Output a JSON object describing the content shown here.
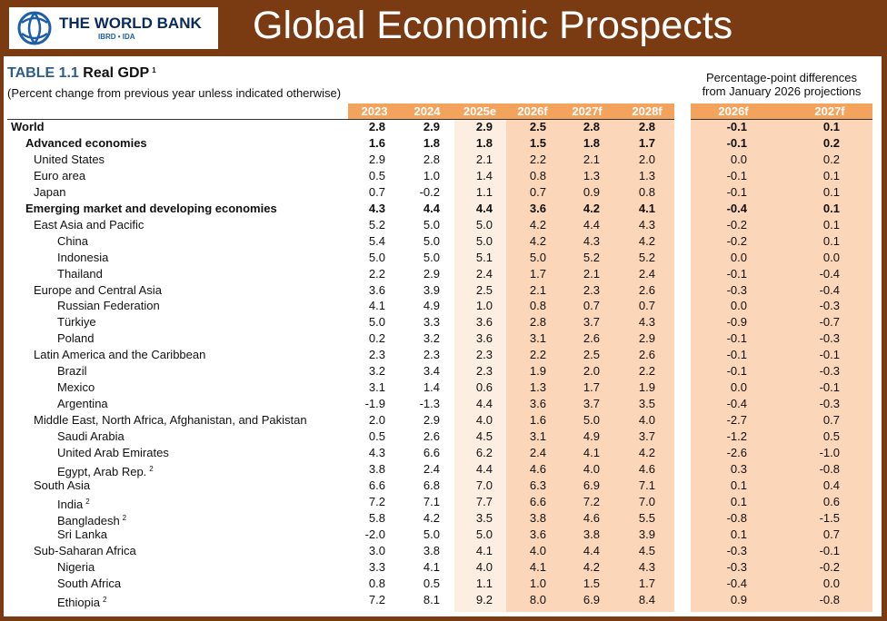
{
  "header": {
    "logo_name": "THE WORLD BANK",
    "logo_sub": "IBRD • IDA",
    "title": "Global Economic Prospects"
  },
  "table": {
    "label": "TABLE 1.1",
    "title": "Real GDP",
    "title_note": "1",
    "subtitle": "(Percent change from previous year unless indicated otherwise)",
    "diff_header": [
      "Percentage-point differences",
      "from January 2026 projections"
    ],
    "columns": [
      "2023",
      "2024",
      "2025e",
      "2026f",
      "2027f",
      "2028f"
    ],
    "diff_columns": [
      "2026f",
      "2027f"
    ],
    "rows": [
      {
        "label": "World",
        "level": 0,
        "bold": true,
        "values": [
          "2.8",
          "2.9",
          "2.9",
          "2.5",
          "2.8",
          "2.8"
        ],
        "diffs": [
          "-0.1",
          "0.1"
        ]
      },
      {
        "label": "Advanced economies",
        "level": 1,
        "bold": true,
        "values": [
          "1.6",
          "1.8",
          "1.8",
          "1.5",
          "1.8",
          "1.7"
        ],
        "diffs": [
          "-0.1",
          "0.2"
        ]
      },
      {
        "label": "United States",
        "level": 2,
        "values": [
          "2.9",
          "2.8",
          "2.1",
          "2.2",
          "2.1",
          "2.0"
        ],
        "diffs": [
          "0.0",
          "0.2"
        ]
      },
      {
        "label": "Euro area",
        "level": 2,
        "values": [
          "0.5",
          "1.0",
          "1.4",
          "0.8",
          "1.3",
          "1.3"
        ],
        "diffs": [
          "-0.1",
          "0.1"
        ]
      },
      {
        "label": "Japan",
        "level": 2,
        "values": [
          "0.7",
          "-0.2",
          "1.1",
          "0.7",
          "0.9",
          "0.8"
        ],
        "diffs": [
          "-0.1",
          "0.1"
        ]
      },
      {
        "label": "Emerging market and developing economies",
        "level": 1,
        "bold": true,
        "values": [
          "4.3",
          "4.4",
          "4.4",
          "3.6",
          "4.2",
          "4.1"
        ],
        "diffs": [
          "-0.4",
          "0.1"
        ]
      },
      {
        "label": "East Asia and Pacific",
        "level": 2,
        "values": [
          "5.2",
          "5.0",
          "5.0",
          "4.2",
          "4.4",
          "4.3"
        ],
        "diffs": [
          "-0.2",
          "0.1"
        ]
      },
      {
        "label": "China",
        "level": 3,
        "values": [
          "5.4",
          "5.0",
          "5.0",
          "4.2",
          "4.3",
          "4.2"
        ],
        "diffs": [
          "-0.2",
          "0.1"
        ]
      },
      {
        "label": "Indonesia",
        "level": 3,
        "values": [
          "5.0",
          "5.0",
          "5.1",
          "5.0",
          "5.2",
          "5.2"
        ],
        "diffs": [
          "0.0",
          "0.0"
        ]
      },
      {
        "label": "Thailand",
        "level": 3,
        "values": [
          "2.2",
          "2.9",
          "2.4",
          "1.7",
          "2.1",
          "2.4"
        ],
        "diffs": [
          "-0.1",
          "-0.4"
        ]
      },
      {
        "label": "Europe and Central Asia",
        "level": 2,
        "values": [
          "3.6",
          "3.9",
          "2.5",
          "2.1",
          "2.3",
          "2.6"
        ],
        "diffs": [
          "-0.3",
          "-0.4"
        ]
      },
      {
        "label": "Russian Federation",
        "level": 3,
        "values": [
          "4.1",
          "4.9",
          "1.0",
          "0.8",
          "0.7",
          "0.7"
        ],
        "diffs": [
          "0.0",
          "-0.3"
        ]
      },
      {
        "label": "Türkiye",
        "level": 3,
        "values": [
          "5.0",
          "3.3",
          "3.6",
          "2.8",
          "3.7",
          "4.3"
        ],
        "diffs": [
          "-0.9",
          "-0.7"
        ]
      },
      {
        "label": "Poland",
        "level": 3,
        "values": [
          "0.2",
          "3.2",
          "3.6",
          "3.1",
          "2.6",
          "2.9"
        ],
        "diffs": [
          "-0.1",
          "-0.3"
        ]
      },
      {
        "label": "Latin America and the Caribbean",
        "level": 2,
        "values": [
          "2.3",
          "2.3",
          "2.3",
          "2.2",
          "2.5",
          "2.6"
        ],
        "diffs": [
          "-0.1",
          "-0.1"
        ]
      },
      {
        "label": "Brazil",
        "level": 3,
        "values": [
          "3.2",
          "3.4",
          "2.3",
          "1.9",
          "2.0",
          "2.2"
        ],
        "diffs": [
          "-0.1",
          "-0.3"
        ]
      },
      {
        "label": "Mexico",
        "level": 3,
        "values": [
          "3.1",
          "1.4",
          "0.6",
          "1.3",
          "1.7",
          "1.9"
        ],
        "diffs": [
          "0.0",
          "-0.1"
        ]
      },
      {
        "label": "Argentina",
        "level": 3,
        "values": [
          "-1.9",
          "-1.3",
          "4.4",
          "3.6",
          "3.7",
          "3.5"
        ],
        "diffs": [
          "-0.4",
          "-0.3"
        ]
      },
      {
        "label": "Middle East, North Africa, Afghanistan, and Pakistan",
        "level": 2,
        "values": [
          "2.0",
          "2.9",
          "4.0",
          "1.6",
          "5.0",
          "4.0"
        ],
        "diffs": [
          "-2.7",
          "0.7"
        ]
      },
      {
        "label": "Saudi Arabia",
        "level": 3,
        "values": [
          "0.5",
          "2.6",
          "4.5",
          "3.1",
          "4.9",
          "3.7"
        ],
        "diffs": [
          "-1.2",
          "0.5"
        ]
      },
      {
        "label": "United Arab Emirates",
        "level": 3,
        "values": [
          "4.3",
          "6.6",
          "6.2",
          "2.4",
          "4.1",
          "4.2"
        ],
        "diffs": [
          "-2.6",
          "-1.0"
        ]
      },
      {
        "label": "Egypt, Arab Rep.",
        "note": "2",
        "level": 3,
        "values": [
          "3.8",
          "2.4",
          "4.4",
          "4.6",
          "4.0",
          "4.6"
        ],
        "diffs": [
          "0.3",
          "-0.8"
        ]
      },
      {
        "label": "South Asia",
        "level": 2,
        "values": [
          "6.6",
          "6.8",
          "7.0",
          "6.3",
          "6.9",
          "7.1"
        ],
        "diffs": [
          "0.1",
          "0.4"
        ]
      },
      {
        "label": "India",
        "note": "2",
        "level": 3,
        "values": [
          "7.2",
          "7.1",
          "7.7",
          "6.6",
          "7.2",
          "7.0"
        ],
        "diffs": [
          "0.1",
          "0.6"
        ]
      },
      {
        "label": "Bangladesh",
        "note": "2",
        "level": 3,
        "values": [
          "5.8",
          "4.2",
          "3.5",
          "3.8",
          "4.6",
          "5.5"
        ],
        "diffs": [
          "-0.8",
          "-1.5"
        ]
      },
      {
        "label": "Sri Lanka",
        "level": 3,
        "values": [
          "-2.0",
          "5.0",
          "5.0",
          "3.6",
          "3.8",
          "3.9"
        ],
        "diffs": [
          "0.1",
          "0.7"
        ]
      },
      {
        "label": "Sub-Saharan Africa",
        "level": 2,
        "values": [
          "3.0",
          "3.8",
          "4.1",
          "4.0",
          "4.4",
          "4.5"
        ],
        "diffs": [
          "-0.3",
          "-0.1"
        ]
      },
      {
        "label": "Nigeria",
        "level": 3,
        "values": [
          "3.3",
          "4.1",
          "4.0",
          "4.1",
          "4.2",
          "4.3"
        ],
        "diffs": [
          "-0.3",
          "-0.2"
        ]
      },
      {
        "label": "South Africa",
        "level": 3,
        "values": [
          "0.8",
          "0.5",
          "1.1",
          "1.0",
          "1.5",
          "1.7"
        ],
        "diffs": [
          "-0.4",
          "0.0"
        ]
      },
      {
        "label": "Ethiopia",
        "note": "2",
        "level": 3,
        "values": [
          "7.2",
          "8.1",
          "9.2",
          "8.0",
          "6.9",
          "8.4"
        ],
        "diffs": [
          "0.9",
          "-0.8"
        ]
      }
    ]
  }
}
